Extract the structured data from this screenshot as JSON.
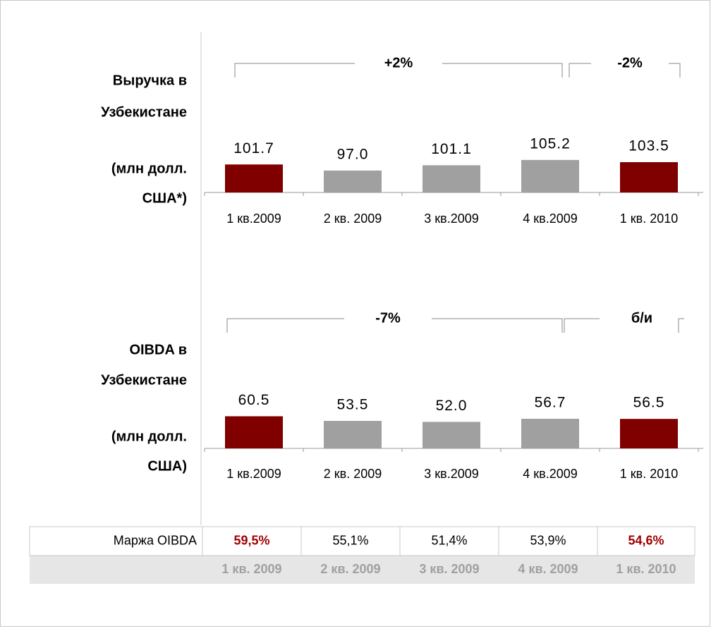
{
  "chart_data": [
    {
      "type": "bar",
      "label_lines": [
        "Выручка в",
        "Узбекистане"
      ],
      "unit_lines": [
        "(млн долл.",
        "США*)"
      ],
      "categories": [
        "1 кв.2009",
        "2 кв. 2009",
        "3 кв.2009",
        "4 кв.2009",
        "1 кв. 2010"
      ],
      "values": [
        101.7,
        97.0,
        101.1,
        105.2,
        103.5
      ],
      "value_labels": [
        "101.7",
        "97.0",
        "101.1",
        "105.2",
        "103.5"
      ],
      "colors": [
        "#800000",
        "#a0a0a0",
        "#a0a0a0",
        "#a0a0a0",
        "#800000"
      ],
      "ylim": [
        80,
        130
      ],
      "annotations": [
        "+2%",
        "-2%"
      ]
    },
    {
      "type": "bar",
      "label_lines": [
        "OIBDA в",
        "Узбекистане"
      ],
      "unit_lines": [
        "(млн долл.",
        "США)"
      ],
      "categories": [
        "1 кв.2009",
        "2 кв. 2009",
        "3 кв.2009",
        "4 кв.2009",
        "1 кв. 2010"
      ],
      "values": [
        60.5,
        53.5,
        52.0,
        56.7,
        56.5
      ],
      "value_labels": [
        "60.5",
        "53.5",
        "52.0",
        "56.7",
        "56.5"
      ],
      "colors": [
        "#800000",
        "#a0a0a0",
        "#a0a0a0",
        "#a0a0a0",
        "#800000"
      ],
      "ylim": [
        12,
        112
      ],
      "annotations": [
        "-7%",
        "б/и"
      ]
    }
  ],
  "table": {
    "rows": [
      [
        "Маржа OIBDA",
        "59,5%",
        "55,1%",
        "51,4%",
        "53,9%",
        "54,6%"
      ],
      [
        "",
        "1 кв. 2009",
        "2 кв. 2009",
        "3 кв. 2009",
        "4 кв. 2009",
        "1 кв. 2010"
      ]
    ],
    "value_colors": [
      "#000000",
      "#a00000",
      "#000000",
      "#000000",
      "#000000",
      "#a00000"
    ]
  }
}
